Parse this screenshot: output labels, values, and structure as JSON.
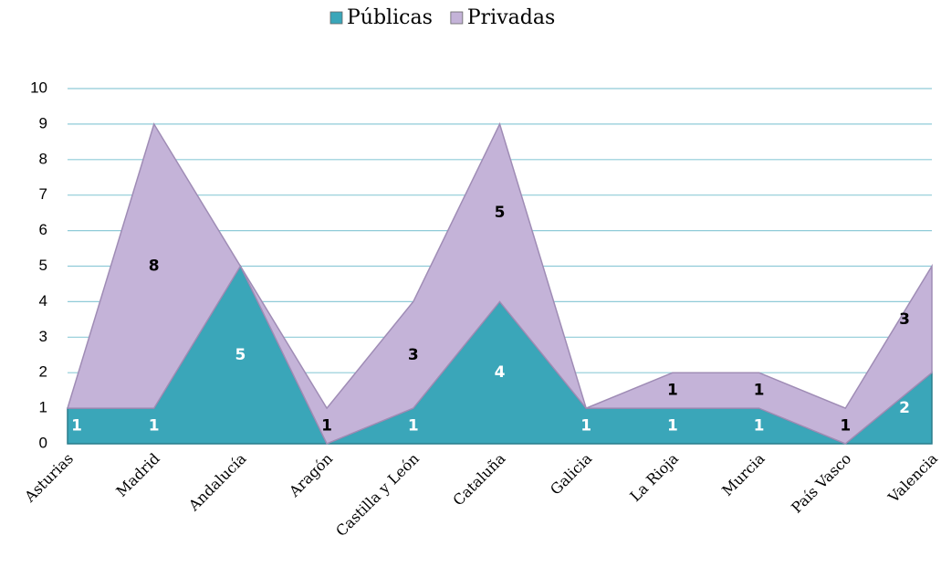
{
  "chart_data": {
    "type": "stacked_area",
    "categories": [
      "Asturias",
      "Madrid",
      "Andalucía",
      "Aragón",
      "Castilla y León",
      "Cataluña",
      "Galicia",
      "La Rioja",
      "Murcia",
      "País Vasco",
      "Valencia"
    ],
    "series": [
      {
        "name": "Públicas",
        "color": "#3aa6b9",
        "values": [
          1,
          1,
          5,
          0,
          1,
          4,
          1,
          1,
          1,
          0,
          2
        ]
      },
      {
        "name": "Privadas",
        "color": "#c4b3d8",
        "values": [
          0,
          8,
          0,
          1,
          3,
          5,
          0,
          1,
          1,
          1,
          3
        ]
      }
    ],
    "ylim": [
      0,
      10
    ],
    "yticks": [
      0,
      1,
      2,
      3,
      4,
      5,
      6,
      7,
      8,
      9,
      10
    ],
    "grid": true,
    "legend": "top"
  }
}
